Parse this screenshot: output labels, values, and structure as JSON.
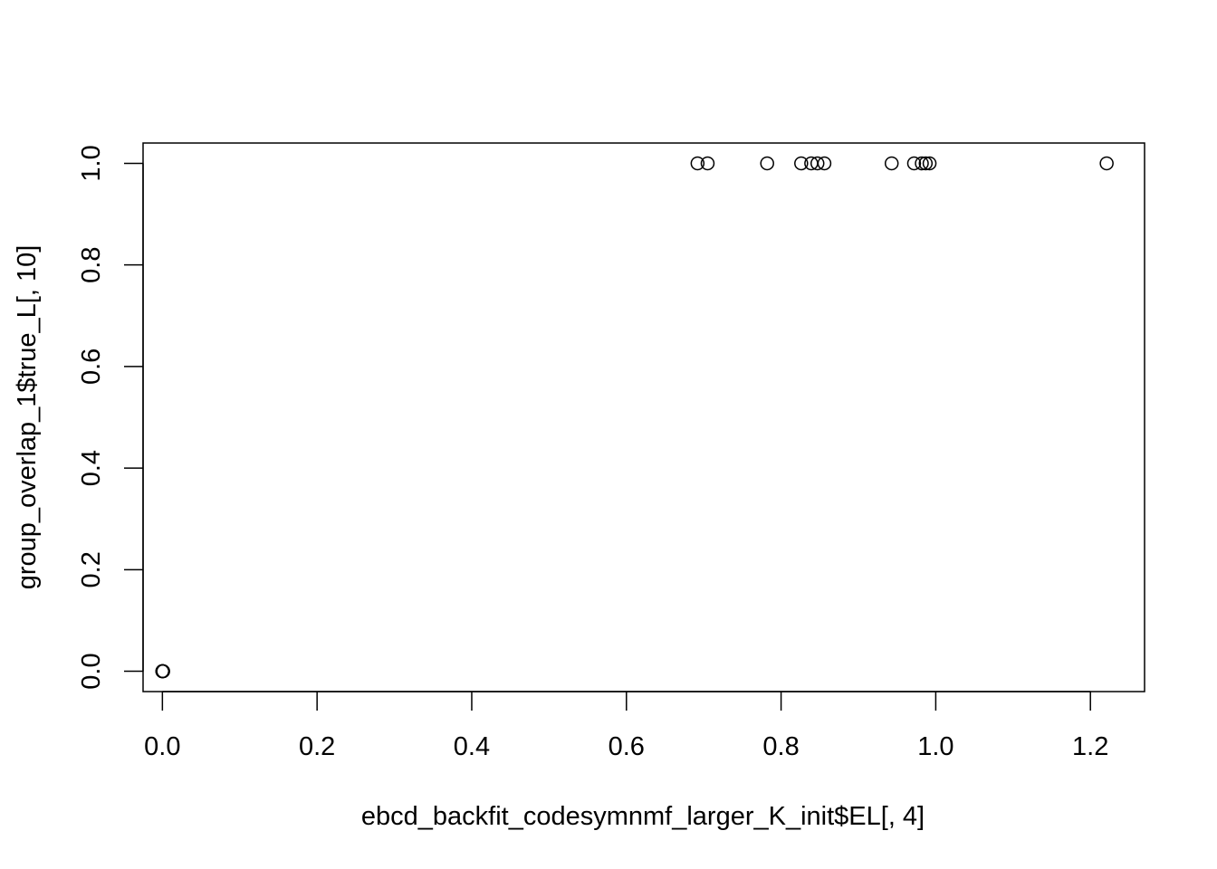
{
  "chart_data": {
    "type": "scatter",
    "title": "",
    "xlabel": "ebcd_backfit_codesymnmf_larger_K_init$EL[, 4]",
    "ylabel": "group_overlap_1$true_L[, 10]",
    "xlim": [
      -0.025,
      1.27
    ],
    "ylim": [
      -0.04,
      1.04
    ],
    "x_ticks": [
      0.0,
      0.2,
      0.4,
      0.6,
      0.8,
      1.0,
      1.2
    ],
    "x_tick_labels": [
      "0.0",
      "0.2",
      "0.4",
      "0.6",
      "0.8",
      "1.0",
      "1.2"
    ],
    "y_ticks": [
      0.0,
      0.2,
      0.4,
      0.6,
      0.8,
      1.0
    ],
    "y_tick_labels": [
      "0.0",
      "0.2",
      "0.4",
      "0.6",
      "0.8",
      "1.0"
    ],
    "grid": false,
    "marker": "open-circle",
    "color": "#000000",
    "points": [
      {
        "x": 0.0,
        "y": 0.0
      },
      {
        "x": 0.0,
        "y": 0.0
      },
      {
        "x": 0.0,
        "y": 0.0
      },
      {
        "x": 0.001,
        "y": 0.0
      },
      {
        "x": 0.0,
        "y": 0.0
      },
      {
        "x": 0.692,
        "y": 1.0
      },
      {
        "x": 0.705,
        "y": 1.0
      },
      {
        "x": 0.782,
        "y": 1.0
      },
      {
        "x": 0.826,
        "y": 1.0
      },
      {
        "x": 0.839,
        "y": 1.0
      },
      {
        "x": 0.847,
        "y": 1.0
      },
      {
        "x": 0.856,
        "y": 1.0
      },
      {
        "x": 0.943,
        "y": 1.0
      },
      {
        "x": 0.972,
        "y": 1.0
      },
      {
        "x": 0.982,
        "y": 1.0
      },
      {
        "x": 0.987,
        "y": 1.0
      },
      {
        "x": 0.992,
        "y": 1.0
      },
      {
        "x": 1.221,
        "y": 1.0
      }
    ]
  }
}
